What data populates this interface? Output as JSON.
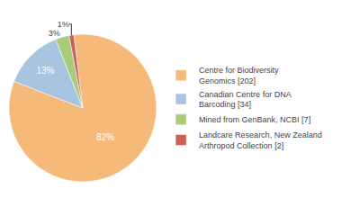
{
  "chart_data": {
    "type": "pie",
    "categories": [
      "Centre for Biodiversity\nGenomics [202]",
      "Canadian Centre for DNA\nBarcoding [34]",
      "Mined from GenBank, NCBI [7]",
      "Landcare Research, New Zealand\nArthropod Collection [2]"
    ],
    "values": [
      82,
      13,
      3,
      1
    ],
    "value_labels": [
      "82%",
      "13%",
      "3%",
      "1%"
    ],
    "colors": [
      "#f5b97a",
      "#a8c4e0",
      "#a8cc78",
      "#cc6055"
    ],
    "data_labels": true,
    "legend": "right"
  }
}
